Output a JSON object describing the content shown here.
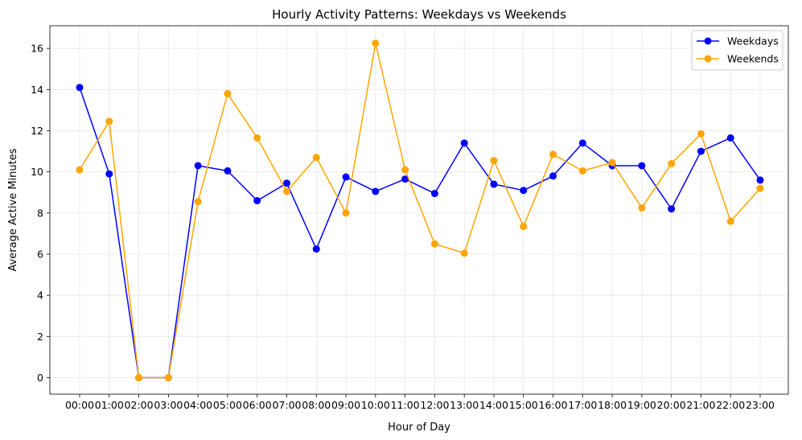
{
  "chart_data": {
    "type": "line",
    "title": "Hourly Activity Patterns: Weekdays vs Weekends",
    "xlabel": "Hour of Day",
    "ylabel": "Average Active Minutes",
    "categories": [
      "00:00",
      "01:00",
      "02:00",
      "03:00",
      "04:00",
      "05:00",
      "06:00",
      "07:00",
      "08:00",
      "09:00",
      "10:00",
      "11:00",
      "12:00",
      "13:00",
      "14:00",
      "15:00",
      "16:00",
      "17:00",
      "18:00",
      "19:00",
      "20:00",
      "21:00",
      "22:00",
      "23:00"
    ],
    "ylim": [
      -0.8,
      17.1
    ],
    "yticks": [
      0,
      2,
      4,
      6,
      8,
      10,
      12,
      14,
      16
    ],
    "grid": true,
    "legend_position": "top-right",
    "series": [
      {
        "name": "Weekdays",
        "color": "#0000ff",
        "marker": "circle",
        "values": [
          14.1,
          9.9,
          0.0,
          0.0,
          10.3,
          10.05,
          8.6,
          9.45,
          6.25,
          9.75,
          9.05,
          9.65,
          8.95,
          11.4,
          9.4,
          9.1,
          9.8,
          11.4,
          10.3,
          10.3,
          8.2,
          11.0,
          11.65,
          9.6
        ]
      },
      {
        "name": "Weekends",
        "color": "#ffa500",
        "marker": "circle",
        "values": [
          10.1,
          12.45,
          0.0,
          0.0,
          8.55,
          13.8,
          11.65,
          9.05,
          10.7,
          8.0,
          16.25,
          10.1,
          6.5,
          6.05,
          10.55,
          7.35,
          10.85,
          10.05,
          10.45,
          8.25,
          10.4,
          11.85,
          7.6,
          9.2
        ]
      }
    ]
  }
}
